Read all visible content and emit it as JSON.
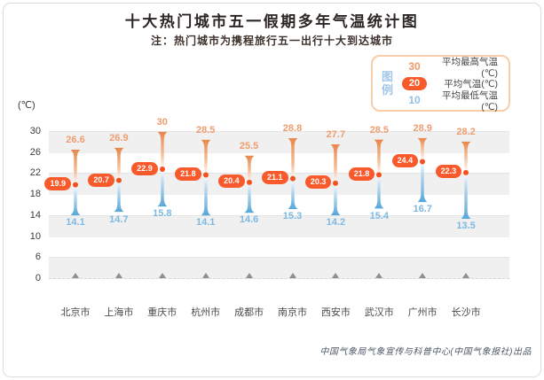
{
  "page": {
    "title": "十大热门城市五一假期多年气温统计图",
    "subtitle": "注：热门城市为携程旅行五一出行十大到达城市",
    "footer": "中国气象局气象宣传与科普中心(中国气象报社)出品"
  },
  "legend": {
    "title": "图例",
    "items": [
      {
        "value": "30",
        "label": "平均最高气温(℃)",
        "role": "high"
      },
      {
        "value": "20",
        "label": "平均气温(℃)",
        "role": "mean"
      },
      {
        "value": "10",
        "label": "平均最低气温(℃)",
        "role": "low"
      }
    ]
  },
  "chart_data": {
    "type": "range-spindle",
    "title": "十大热门城市五一假期多年气温统计图",
    "unit_label": "(℃)",
    "y_ticks": [
      30,
      26,
      22,
      18,
      14,
      10,
      6,
      0
    ],
    "gray_band_tick_pairs": [
      [
        0,
        1
      ],
      [
        2,
        3
      ],
      [
        4,
        5
      ],
      [
        6,
        7
      ]
    ],
    "categories": [
      "北京市",
      "上海市",
      "重庆市",
      "杭州市",
      "成都市",
      "南京市",
      "西安市",
      "武汉市",
      "广州市",
      "长沙市"
    ],
    "series": [
      {
        "name": "平均最高气温(℃)",
        "role": "high",
        "values": [
          26.6,
          26.9,
          30,
          28.5,
          25.5,
          28.8,
          27.7,
          28.5,
          28.9,
          28.2
        ]
      },
      {
        "name": "平均气温(℃)",
        "role": "mean",
        "values": [
          19.9,
          20.7,
          22.9,
          21.8,
          20.4,
          21.1,
          20.3,
          21.8,
          24.4,
          22.3
        ]
      },
      {
        "name": "平均最低气温(℃)",
        "role": "low",
        "values": [
          14.1,
          14.7,
          15.8,
          14.1,
          14.6,
          15.3,
          14.2,
          15.4,
          16.7,
          13.5
        ]
      }
    ],
    "colors": {
      "high_text": "#EF9D6F",
      "low_text": "#7DB9E2",
      "mean_pill": "#F85A2B",
      "mean_dot": "#F4511E",
      "spindle_top": "#E8874B",
      "spindle_top_soft": "#F5BE97",
      "spindle_mid": "#FFFFFF",
      "spindle_low_soft": "#BFDCF0",
      "spindle_bottom": "#55A7DA",
      "band_gray": "#F0F0F0",
      "legend_border": "#F7CDAA",
      "legend_title_blue": "#A3C6E8"
    }
  }
}
